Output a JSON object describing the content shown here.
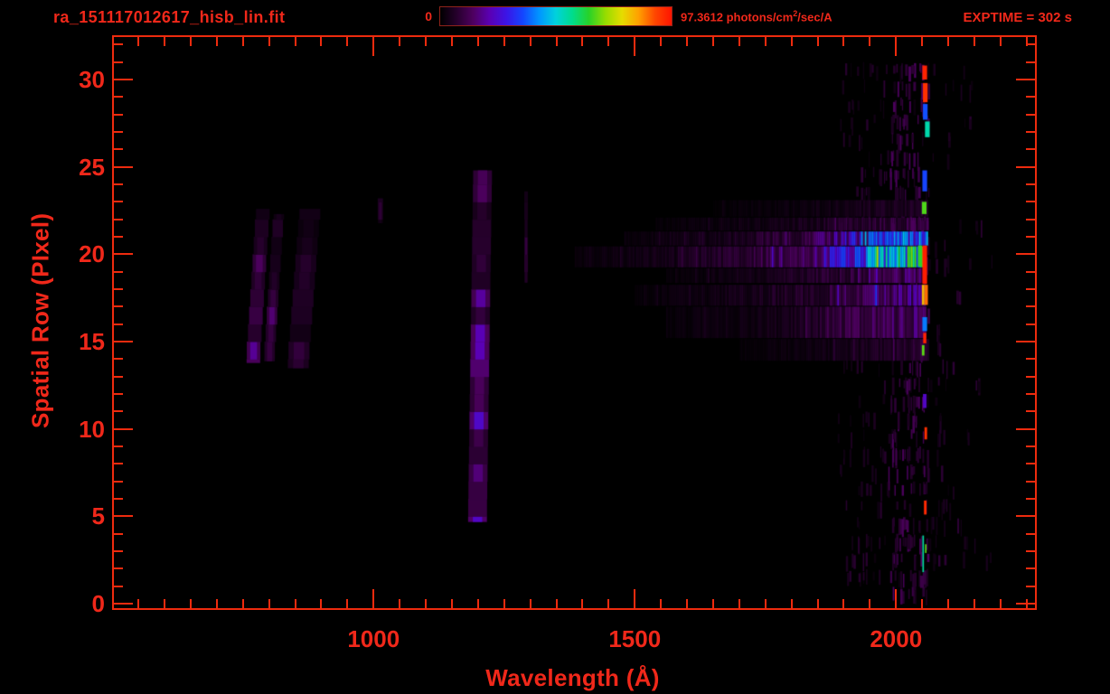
{
  "window": {
    "background": "#000000",
    "accent_red": "#f0281a",
    "axis_red": "#ee2b0e"
  },
  "header": {
    "title": "ra_151117012617_hisb_lin.fit",
    "exptime_label": "EXPTIME = 302 s",
    "colorbar": {
      "min_label": "0",
      "max_label_prefix": "97.3612 photons/cm",
      "max_label_sup": "2",
      "max_label_suffix": "/sec/A",
      "border_color": "#8f231a",
      "colors": [
        "#000000",
        "#26002c",
        "#4e0060",
        "#5a00b4",
        "#3c14e6",
        "#1446ff",
        "#0096ff",
        "#00d2dc",
        "#00dc8c",
        "#28d228",
        "#96dc00",
        "#e6dc00",
        "#ffa000",
        "#ff4600",
        "#ff1400"
      ]
    }
  },
  "chart_data": {
    "type": "heatmap",
    "title": "ra_151117012617_hisb_lin.fit",
    "xlabel": "Wavelength (Å)",
    "ylabel": "Spatial Row (PIxel)",
    "xlim": [
      503,
      2266
    ],
    "ylim": [
      -0.26,
      32.4
    ],
    "xticks_major": [
      1000,
      1500,
      2000
    ],
    "xtick_minor_step": 50,
    "yticks_major": [
      0,
      5,
      10,
      15,
      20,
      25,
      30
    ],
    "ytick_minor_step": 1,
    "intensity_range": [
      0,
      97.3612
    ],
    "intensity_units": "photons/cm²/sec/A",
    "exposure_time_s": 302,
    "grid": false,
    "legend": "top colorbar",
    "colormap_stops": [
      [
        0.0,
        "#000000"
      ],
      [
        0.055,
        "#26002c"
      ],
      [
        0.11,
        "#4e0060"
      ],
      [
        0.16,
        "#5a00b4"
      ],
      [
        0.21,
        "#3c14e6"
      ],
      [
        0.27,
        "#1446ff"
      ],
      [
        0.33,
        "#0096ff"
      ],
      [
        0.4,
        "#00d2dc"
      ],
      [
        0.47,
        "#00dc8c"
      ],
      [
        0.54,
        "#28d228"
      ],
      [
        0.64,
        "#96dc00"
      ],
      [
        0.74,
        "#e6dc00"
      ],
      [
        0.84,
        "#ffa000"
      ],
      [
        0.92,
        "#ff4600"
      ],
      [
        1.0,
        "#ff1400"
      ]
    ],
    "features": {
      "vertical_bands": [
        {
          "name": "airglow-arc-1",
          "lam": 770,
          "width_A": 26,
          "row_min": 13.8,
          "row_max": 22.6,
          "tilt_A_per_row": 2.2,
          "intensity": 8,
          "fade_top": true
        },
        {
          "name": "airglow-arc-2",
          "lam": 801,
          "width_A": 20,
          "row_min": 13.9,
          "row_max": 22.3,
          "tilt_A_per_row": 2.2,
          "intensity": 7,
          "fade_top": true
        },
        {
          "name": "airglow-arc-3",
          "lam": 856,
          "width_A": 40,
          "row_min": 13.5,
          "row_max": 22.6,
          "tilt_A_per_row": 2.6,
          "intensity": 4,
          "fade_top": true
        },
        {
          "name": "lyman-alpha-band",
          "lam": 1199,
          "width_A": 36,
          "row_min": 4.7,
          "row_max": 24.8,
          "tilt_A_per_row": 0.5,
          "intensity": 11,
          "fade_top": true
        },
        {
          "name": "faint-line-1290",
          "lam": 1292,
          "width_A": 7,
          "row_min": 18.4,
          "row_max": 23.6,
          "tilt_A_per_row": 0,
          "intensity": 4,
          "fade_top": false
        },
        {
          "name": "faint-patch-1013",
          "lam": 1013,
          "width_A": 10,
          "row_min": 21.8,
          "row_max": 23.2,
          "tilt_A_per_row": 0,
          "intensity": 3,
          "fade_top": false
        }
      ],
      "horizontal_streaks": [
        {
          "name": "spectrum-row-20",
          "row_min": 19.25,
          "row_max": 20.45,
          "stops": [
            [
              1385,
              1.5
            ],
            [
              1550,
              3
            ],
            [
              1700,
              6
            ],
            [
              1800,
              10
            ],
            [
              1860,
              15
            ],
            [
              1900,
              22
            ],
            [
              1940,
              30
            ],
            [
              1980,
              35
            ],
            [
              2015,
              40
            ],
            [
              2040,
              48
            ],
            [
              2053,
              52
            ]
          ]
        },
        {
          "name": "spectrum-row-21",
          "row_min": 20.5,
          "row_max": 21.3,
          "stops": [
            [
              1480,
              1.5
            ],
            [
              1650,
              3
            ],
            [
              1800,
              7
            ],
            [
              1880,
              12
            ],
            [
              1930,
              18
            ],
            [
              1975,
              24
            ],
            [
              2020,
              26
            ],
            [
              2060,
              27
            ]
          ]
        },
        {
          "name": "spectrum-row-22",
          "row_min": 21.35,
          "row_max": 22.1,
          "stops": [
            [
              1540,
              1
            ],
            [
              1750,
              2.5
            ],
            [
              1900,
              5
            ],
            [
              2000,
              7
            ],
            [
              2060,
              8
            ]
          ]
        },
        {
          "name": "spectrum-row-19",
          "row_min": 18.35,
          "row_max": 19.2,
          "stops": [
            [
              1560,
              1
            ],
            [
              1750,
              3
            ],
            [
              1900,
              6
            ],
            [
              2000,
              9
            ],
            [
              2055,
              11
            ]
          ]
        },
        {
          "name": "spectrum-row-18",
          "row_min": 17.05,
          "row_max": 18.25,
          "stops": [
            [
              1500,
              1
            ],
            [
              1700,
              3
            ],
            [
              1850,
              6
            ],
            [
              1930,
              10
            ],
            [
              2000,
              12
            ],
            [
              2055,
              13
            ]
          ]
        },
        {
          "name": "spectrum-row-16",
          "row_min": 15.2,
          "row_max": 17.0,
          "stops": [
            [
              1560,
              1
            ],
            [
              1780,
              3
            ],
            [
              1900,
              7
            ],
            [
              1980,
              9
            ],
            [
              2055,
              10
            ]
          ]
        },
        {
          "name": "spectrum-row-23",
          "row_min": 22.15,
          "row_max": 23.1,
          "stops": [
            [
              1650,
              0.8
            ],
            [
              1900,
              2.5
            ],
            [
              2000,
              4
            ],
            [
              2060,
              5
            ]
          ]
        },
        {
          "name": "spectrum-row-14",
          "row_min": 13.9,
          "row_max": 15.15,
          "stops": [
            [
              1700,
              0.8
            ],
            [
              1900,
              3
            ],
            [
              2000,
              5
            ],
            [
              2060,
              6
            ]
          ]
        }
      ],
      "edge_marks": [
        {
          "row_min": 30.0,
          "row_max": 30.8,
          "intensity": 95,
          "lam": 2055
        },
        {
          "row_min": 28.7,
          "row_max": 29.8,
          "intensity": 93,
          "lam": 2056
        },
        {
          "row_min": 27.7,
          "row_max": 28.6,
          "intensity": 27,
          "lam": 2056
        },
        {
          "row_min": 26.7,
          "row_max": 27.6,
          "intensity": 43,
          "lam": 2060
        },
        {
          "row_min": 23.6,
          "row_max": 24.8,
          "intensity": 26,
          "lam": 2055
        },
        {
          "row_min": 22.3,
          "row_max": 23.0,
          "intensity": 56,
          "lam": 2054
        },
        {
          "row_min": 19.3,
          "row_max": 20.5,
          "intensity": 53,
          "lam": 2046,
          "width_A": 8
        },
        {
          "row_min": 18.3,
          "row_max": 20.5,
          "intensity": 96,
          "lam": 2055,
          "width_A": 9
        },
        {
          "row_min": 17.1,
          "row_max": 18.25,
          "intensity": 78,
          "lam": 2052,
          "width_A": 5
        },
        {
          "row_min": 17.1,
          "row_max": 18.25,
          "intensity": 86,
          "lam": 2058,
          "width_A": 6
        },
        {
          "row_min": 15.6,
          "row_max": 16.4,
          "intensity": 30,
          "lam": 2055
        },
        {
          "row_min": 14.9,
          "row_max": 15.5,
          "intensity": 95,
          "lam": 2055,
          "width_A": 6
        },
        {
          "row_min": 14.2,
          "row_max": 14.8,
          "intensity": 57,
          "lam": 2052,
          "width_A": 5
        },
        {
          "row_min": 11.2,
          "row_max": 12.0,
          "intensity": 17,
          "lam": 2055,
          "width_A": 7
        },
        {
          "row_min": 9.4,
          "row_max": 10.1,
          "intensity": 93,
          "lam": 2057,
          "width_A": 5
        },
        {
          "row_min": 5.1,
          "row_max": 5.9,
          "intensity": 94,
          "lam": 2056,
          "width_A": 5
        },
        {
          "row_min": 1.8,
          "row_max": 3.9,
          "intensity": 44,
          "lam": 2052,
          "width_A": 3
        },
        {
          "row_min": 2.9,
          "row_max": 3.4,
          "intensity": 57,
          "lam": 2057,
          "width_A": 3
        },
        {
          "row_min": 0.9,
          "row_max": 1.6,
          "intensity": 8,
          "lam": 2050,
          "width_A": 8
        }
      ],
      "noise_regions": [
        {
          "name": "detector-noise-wide",
          "lam_min": 1888,
          "lam_max": 2185,
          "row_min": 0.4,
          "row_max": 30.9,
          "stripe_count": 430,
          "intensity_min": 1.5,
          "intensity_max": 6.5
        },
        {
          "name": "detector-noise-core",
          "lam_min": 1985,
          "lam_max": 2062,
          "row_min": 0.4,
          "row_max": 30.9,
          "stripe_count": 240,
          "intensity_min": 4,
          "intensity_max": 11
        }
      ]
    }
  }
}
